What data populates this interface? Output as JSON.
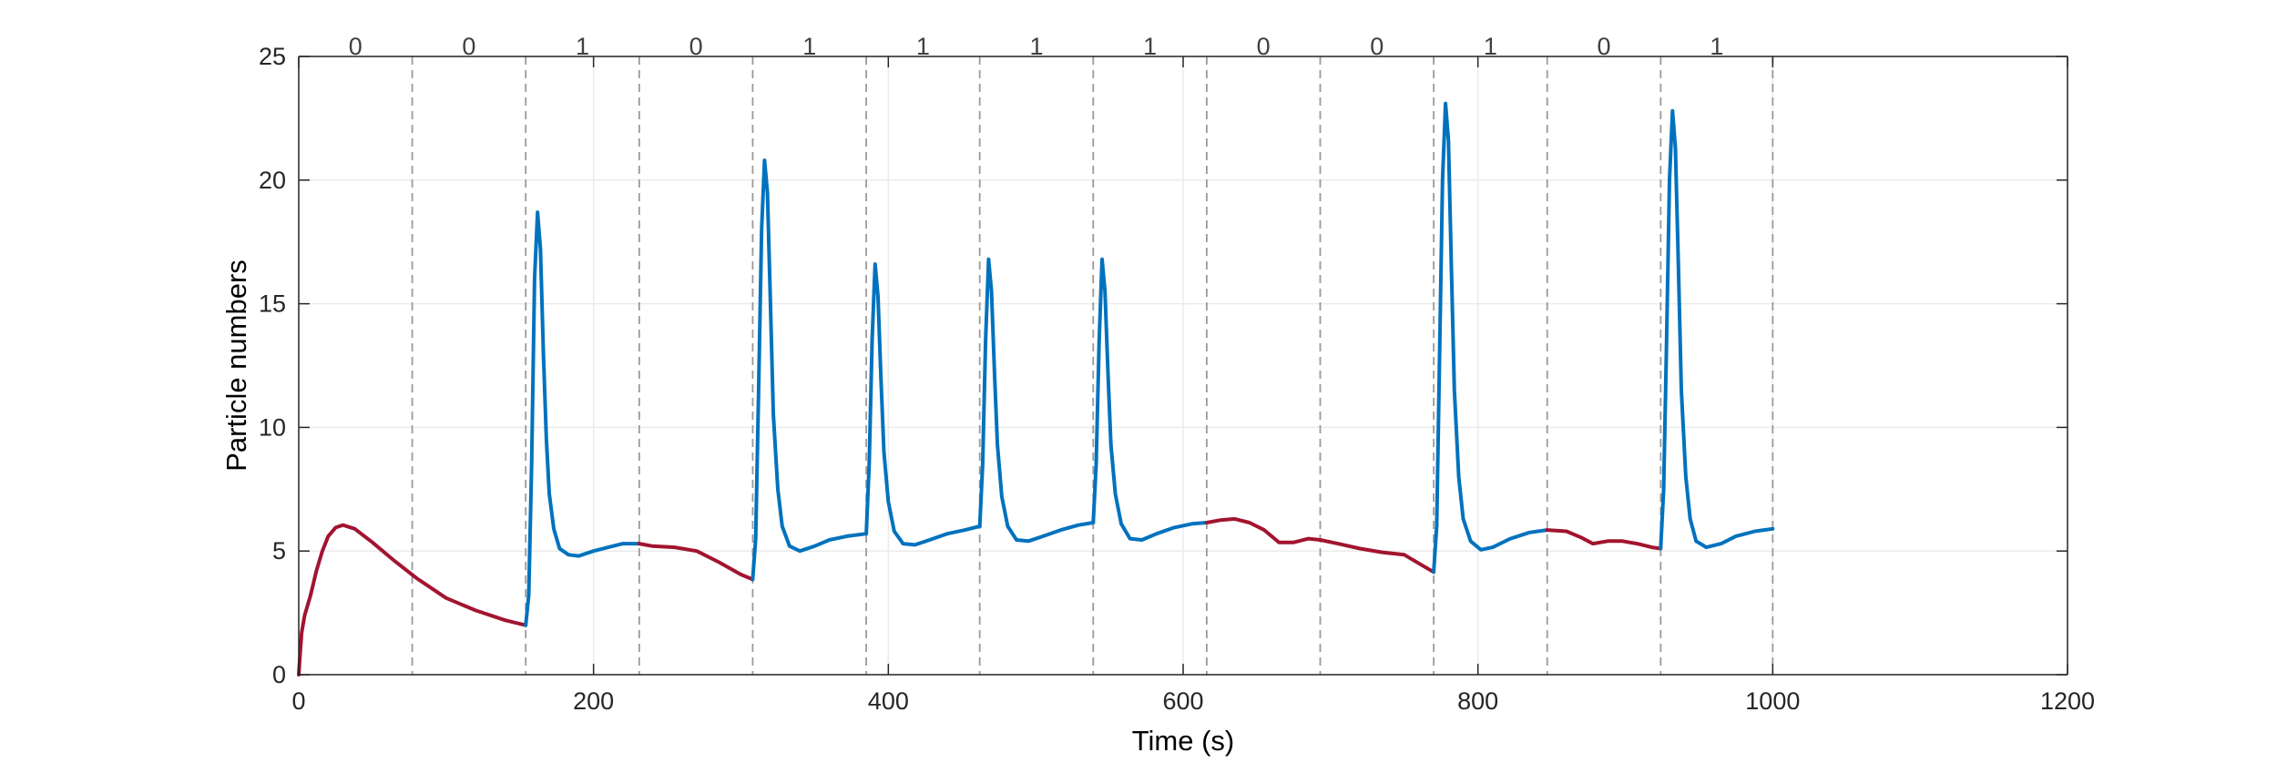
{
  "chart_data": {
    "type": "line",
    "xlabel": "Time (s)",
    "ylabel": "Particle numbers",
    "xlim": [
      0,
      1200
    ],
    "ylim": [
      0,
      25
    ],
    "x_ticks": [
      0,
      200,
      400,
      600,
      800,
      1000,
      1200
    ],
    "y_ticks": [
      0,
      5,
      10,
      15,
      20,
      25
    ],
    "grid": true,
    "box": true,
    "bit_boundaries": [
      0,
      77,
      154,
      231,
      308,
      385,
      462,
      539,
      616,
      693,
      770,
      847,
      924,
      1000
    ],
    "bits": [
      "0",
      "0",
      "1",
      "0",
      "1",
      "1",
      "1",
      "1",
      "0",
      "0",
      "1",
      "0",
      "1"
    ],
    "colors": {
      "bit_0": "#A2142F",
      "bit_1": "#0072BD",
      "grid": "#ebebeb",
      "axis": "#262626",
      "separator": "#9a9a9a"
    },
    "series": [
      {
        "color": "#A2142F",
        "points": [
          [
            0,
            0
          ],
          [
            1,
            0.9
          ],
          [
            2,
            1.7
          ],
          [
            4,
            2.4
          ],
          [
            8,
            3.2
          ],
          [
            12,
            4.2
          ],
          [
            16,
            5.0
          ],
          [
            20,
            5.6
          ],
          [
            25,
            5.95
          ],
          [
            30,
            6.05
          ],
          [
            38,
            5.9
          ],
          [
            50,
            5.35
          ],
          [
            65,
            4.6
          ],
          [
            80,
            3.9
          ],
          [
            100,
            3.1
          ],
          [
            120,
            2.6
          ],
          [
            140,
            2.2
          ],
          [
            154,
            2.0
          ]
        ]
      },
      {
        "color": "#0072BD",
        "points": [
          [
            154,
            2.0
          ],
          [
            156,
            3.2
          ],
          [
            158,
            8.5
          ],
          [
            160,
            16.0
          ],
          [
            162,
            18.7
          ],
          [
            164,
            17.2
          ],
          [
            166,
            13.0
          ],
          [
            168,
            9.5
          ],
          [
            170,
            7.3
          ],
          [
            173,
            5.9
          ],
          [
            177,
            5.1
          ],
          [
            183,
            4.85
          ],
          [
            190,
            4.8
          ],
          [
            200,
            5.0
          ],
          [
            210,
            5.15
          ],
          [
            220,
            5.3
          ],
          [
            231,
            5.3
          ]
        ]
      },
      {
        "color": "#A2142F",
        "points": [
          [
            231,
            5.3
          ],
          [
            240,
            5.2
          ],
          [
            255,
            5.15
          ],
          [
            270,
            5.0
          ],
          [
            285,
            4.55
          ],
          [
            300,
            4.05
          ],
          [
            308,
            3.85
          ]
        ]
      },
      {
        "color": "#0072BD",
        "points": [
          [
            308,
            3.85
          ],
          [
            310,
            5.5
          ],
          [
            312,
            11.5
          ],
          [
            314,
            18.0
          ],
          [
            316,
            20.8
          ],
          [
            318,
            19.5
          ],
          [
            320,
            15.0
          ],
          [
            322,
            10.5
          ],
          [
            325,
            7.5
          ],
          [
            328,
            6.0
          ],
          [
            333,
            5.2
          ],
          [
            340,
            5.0
          ],
          [
            350,
            5.2
          ],
          [
            360,
            5.45
          ],
          [
            372,
            5.6
          ],
          [
            385,
            5.7
          ]
        ]
      },
      {
        "color": "#0072BD",
        "points": [
          [
            385,
            5.7
          ],
          [
            387,
            8.5
          ],
          [
            389,
            13.5
          ],
          [
            391,
            16.6
          ],
          [
            393,
            15.3
          ],
          [
            395,
            12.0
          ],
          [
            397,
            9.0
          ],
          [
            400,
            7.0
          ],
          [
            404,
            5.8
          ],
          [
            410,
            5.3
          ],
          [
            418,
            5.25
          ],
          [
            428,
            5.45
          ],
          [
            440,
            5.7
          ],
          [
            452,
            5.85
          ],
          [
            462,
            6.0
          ]
        ]
      },
      {
        "color": "#0072BD",
        "points": [
          [
            462,
            6.0
          ],
          [
            464,
            8.5
          ],
          [
            466,
            13.5
          ],
          [
            468,
            16.8
          ],
          [
            470,
            15.5
          ],
          [
            472,
            12.2
          ],
          [
            474,
            9.3
          ],
          [
            477,
            7.2
          ],
          [
            481,
            6.0
          ],
          [
            487,
            5.45
          ],
          [
            495,
            5.4
          ],
          [
            505,
            5.6
          ],
          [
            517,
            5.85
          ],
          [
            529,
            6.05
          ],
          [
            539,
            6.15
          ]
        ]
      },
      {
        "color": "#0072BD",
        "points": [
          [
            539,
            6.15
          ],
          [
            541,
            8.5
          ],
          [
            543,
            13.5
          ],
          [
            545,
            16.8
          ],
          [
            547,
            15.5
          ],
          [
            549,
            12.2
          ],
          [
            551,
            9.3
          ],
          [
            554,
            7.3
          ],
          [
            558,
            6.1
          ],
          [
            564,
            5.5
          ],
          [
            572,
            5.45
          ],
          [
            582,
            5.7
          ],
          [
            594,
            5.95
          ],
          [
            606,
            6.1
          ],
          [
            616,
            6.15
          ]
        ]
      },
      {
        "color": "#A2142F",
        "points": [
          [
            616,
            6.15
          ],
          [
            625,
            6.25
          ],
          [
            635,
            6.3
          ],
          [
            645,
            6.15
          ],
          [
            655,
            5.85
          ],
          [
            665,
            5.35
          ],
          [
            675,
            5.35
          ],
          [
            685,
            5.5
          ],
          [
            693,
            5.45
          ],
          [
            705,
            5.3
          ],
          [
            720,
            5.1
          ],
          [
            735,
            4.95
          ],
          [
            750,
            4.85
          ],
          [
            760,
            4.5
          ],
          [
            770,
            4.15
          ]
        ]
      },
      {
        "color": "#0072BD",
        "points": [
          [
            770,
            4.15
          ],
          [
            772,
            6.0
          ],
          [
            774,
            13.0
          ],
          [
            776,
            20.0
          ],
          [
            778,
            23.1
          ],
          [
            780,
            21.6
          ],
          [
            782,
            16.5
          ],
          [
            784,
            11.5
          ],
          [
            787,
            8.0
          ],
          [
            790,
            6.3
          ],
          [
            795,
            5.4
          ],
          [
            802,
            5.05
          ],
          [
            810,
            5.15
          ],
          [
            822,
            5.5
          ],
          [
            835,
            5.75
          ],
          [
            847,
            5.85
          ]
        ]
      },
      {
        "color": "#A2142F",
        "points": [
          [
            847,
            5.85
          ],
          [
            860,
            5.8
          ],
          [
            870,
            5.55
          ],
          [
            878,
            5.3
          ],
          [
            888,
            5.4
          ],
          [
            898,
            5.4
          ],
          [
            908,
            5.3
          ],
          [
            918,
            5.15
          ],
          [
            924,
            5.1
          ]
        ]
      },
      {
        "color": "#0072BD",
        "points": [
          [
            924,
            5.1
          ],
          [
            926,
            7.5
          ],
          [
            928,
            13.5
          ],
          [
            930,
            20.0
          ],
          [
            932,
            22.8
          ],
          [
            934,
            21.3
          ],
          [
            936,
            16.5
          ],
          [
            938,
            11.5
          ],
          [
            941,
            8.0
          ],
          [
            944,
            6.3
          ],
          [
            948,
            5.4
          ],
          [
            955,
            5.15
          ],
          [
            965,
            5.3
          ],
          [
            975,
            5.6
          ],
          [
            988,
            5.8
          ],
          [
            1000,
            5.9
          ]
        ]
      }
    ]
  }
}
